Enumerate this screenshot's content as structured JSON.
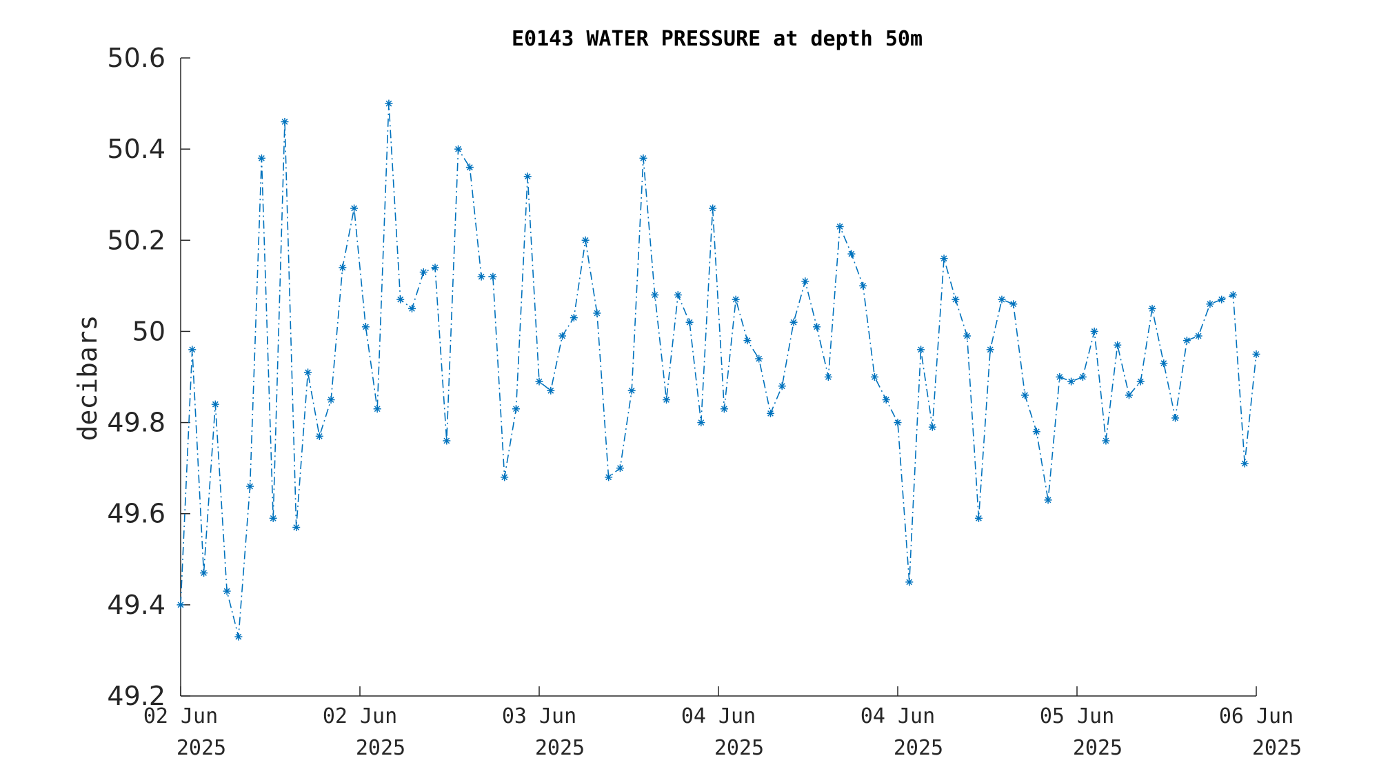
{
  "chart_data": {
    "type": "line",
    "title": "E0143 WATER PRESSURE at depth 50m",
    "xlabel": "",
    "ylabel": "decibars",
    "ylim": [
      49.2,
      50.6
    ],
    "y_ticks": [
      "49.2",
      "49.4",
      "49.6",
      "49.8",
      "50",
      "50.2",
      "50.4",
      "50.6"
    ],
    "x_ticks": [
      {
        "day": "02 Jun",
        "year": "2025"
      },
      {
        "day": "02 Jun",
        "year": "2025"
      },
      {
        "day": "03 Jun",
        "year": "2025"
      },
      {
        "day": "04 Jun",
        "year": "2025"
      },
      {
        "day": "04 Jun",
        "year": "2025"
      },
      {
        "day": "05 Jun",
        "year": "2025"
      },
      {
        "day": "06 Jun",
        "year": "2025"
      }
    ],
    "line_style": "dash-dot",
    "marker": "asterisk",
    "grid": false,
    "color": "#0072BD",
    "series": [
      {
        "values": [
          49.4,
          49.96,
          49.47,
          49.84,
          49.43,
          49.33,
          49.66,
          50.38,
          49.59,
          50.46,
          49.57,
          49.91,
          49.77,
          49.85,
          50.14,
          50.27,
          50.01,
          49.83,
          50.5,
          50.07,
          50.05,
          50.13,
          50.14,
          49.76,
          50.4,
          50.36,
          50.12,
          50.12,
          49.68,
          49.83,
          50.34,
          49.89,
          49.87,
          49.99,
          50.03,
          50.2,
          50.04,
          49.68,
          49.7,
          49.87,
          50.38,
          50.08,
          49.85,
          50.08,
          50.02,
          49.8,
          50.27,
          49.83,
          50.07,
          49.98,
          49.94,
          49.82,
          49.88,
          50.02,
          50.11,
          50.01,
          49.9,
          50.23,
          50.17,
          50.1,
          49.9,
          49.85,
          49.8,
          49.45,
          49.96,
          49.79,
          50.16,
          50.07,
          49.99,
          49.59,
          49.96,
          50.07,
          50.06,
          49.86,
          49.78,
          49.63,
          49.9,
          49.89,
          49.9,
          50.0,
          49.76,
          49.97,
          49.86,
          49.89,
          50.05,
          49.93,
          49.81,
          49.98,
          49.99,
          50.06,
          50.07,
          50.08,
          49.71,
          49.95
        ]
      }
    ]
  }
}
